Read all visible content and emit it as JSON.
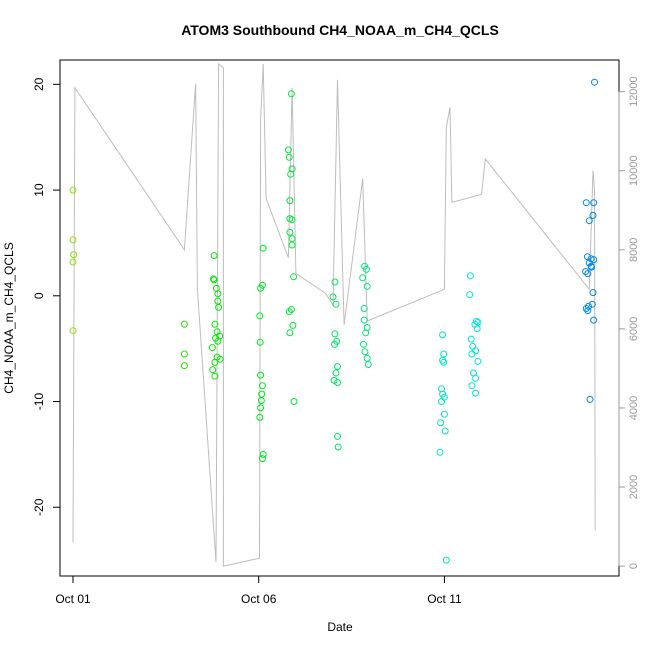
{
  "chart_data": {
    "type": "scatter",
    "title": "ATOM3 Southbound CH4_NOAA_m_CH4_QCLS",
    "xlabel": "Date",
    "ylabel": "CH4_NOAA_m_CH4_QCLS",
    "x_ticks": [
      "Oct 01",
      "Oct 06",
      "Oct 11"
    ],
    "x_tick_values": [
      1,
      6,
      11
    ],
    "xlim": [
      0.65,
      15.7
    ],
    "ylim": [
      -26.5,
      22.3
    ],
    "y_ticks": [
      -20,
      -10,
      0,
      10,
      20
    ],
    "y_right": {
      "description": "altitude trace (gray line)",
      "ylim": [
        -250,
        12800
      ],
      "ticks": [
        0,
        2000,
        4000,
        6000,
        8000,
        10000,
        12000
      ]
    },
    "grid": false,
    "series": [
      {
        "color_scale": "date (green to blue)",
        "points": [
          [
            1.0,
            10.0
          ],
          [
            1.0,
            5.3
          ],
          [
            1.02,
            3.9
          ],
          [
            1.0,
            3.2
          ],
          [
            1.0,
            -3.3
          ],
          [
            4.0,
            -2.7
          ],
          [
            4.0,
            -5.5
          ],
          [
            4.0,
            -6.6
          ],
          [
            4.8,
            3.8
          ],
          [
            4.78,
            1.6
          ],
          [
            4.8,
            1.5
          ],
          [
            4.86,
            0.7
          ],
          [
            4.9,
            0.2
          ],
          [
            4.9,
            -0.5
          ],
          [
            4.92,
            -1.1
          ],
          [
            4.82,
            -2.7
          ],
          [
            4.88,
            -3.4
          ],
          [
            4.95,
            -3.8
          ],
          [
            4.84,
            -4.0
          ],
          [
            4.9,
            -4.3
          ],
          [
            4.75,
            -4.9
          ],
          [
            4.88,
            -5.8
          ],
          [
            4.96,
            -6.0
          ],
          [
            4.82,
            -6.3
          ],
          [
            4.76,
            -7.0
          ],
          [
            4.82,
            -7.6
          ],
          [
            6.12,
            4.5
          ],
          [
            6.1,
            1.0
          ],
          [
            6.05,
            0.7
          ],
          [
            6.03,
            -1.9
          ],
          [
            6.04,
            -4.4
          ],
          [
            6.05,
            -7.5
          ],
          [
            6.1,
            -8.5
          ],
          [
            6.08,
            -9.3
          ],
          [
            6.07,
            -9.9
          ],
          [
            6.05,
            -10.6
          ],
          [
            6.03,
            -11.5
          ],
          [
            6.12,
            -15.0
          ],
          [
            6.1,
            -15.4
          ],
          [
            6.88,
            19.1
          ],
          [
            6.8,
            13.8
          ],
          [
            6.82,
            13.1
          ],
          [
            6.9,
            12.0
          ],
          [
            6.86,
            11.5
          ],
          [
            6.84,
            9.0
          ],
          [
            6.84,
            7.3
          ],
          [
            6.9,
            7.2
          ],
          [
            6.84,
            6.0
          ],
          [
            6.9,
            5.4
          ],
          [
            6.9,
            4.8
          ],
          [
            6.94,
            1.8
          ],
          [
            6.82,
            -1.5
          ],
          [
            6.88,
            -1.3
          ],
          [
            6.92,
            -2.8
          ],
          [
            6.84,
            -3.5
          ],
          [
            6.95,
            -10.0
          ],
          [
            8.05,
            1.3
          ],
          [
            8.0,
            -0.1
          ],
          [
            8.08,
            -0.8
          ],
          [
            8.05,
            -3.6
          ],
          [
            8.1,
            -4.3
          ],
          [
            8.04,
            -4.6
          ],
          [
            8.12,
            -6.7
          ],
          [
            8.08,
            -7.3
          ],
          [
            8.03,
            -8.0
          ],
          [
            8.12,
            -8.2
          ],
          [
            8.12,
            -13.3
          ],
          [
            8.14,
            -14.3
          ],
          [
            8.85,
            2.8
          ],
          [
            8.9,
            2.5
          ],
          [
            8.8,
            1.7
          ],
          [
            8.92,
            0.9
          ],
          [
            8.84,
            -1.2
          ],
          [
            8.84,
            -2.3
          ],
          [
            8.92,
            -3.0
          ],
          [
            8.88,
            -3.5
          ],
          [
            8.82,
            -4.6
          ],
          [
            8.86,
            -5.3
          ],
          [
            8.92,
            -5.9
          ],
          [
            8.95,
            -6.5
          ],
          [
            10.95,
            -3.7
          ],
          [
            10.98,
            -5.5
          ],
          [
            10.95,
            -6.1
          ],
          [
            10.98,
            -6.3
          ],
          [
            10.92,
            -8.8
          ],
          [
            10.95,
            -9.3
          ],
          [
            11.0,
            -9.6
          ],
          [
            10.92,
            -10.0
          ],
          [
            11.0,
            -11.2
          ],
          [
            10.9,
            -12.0
          ],
          [
            11.02,
            -12.8
          ],
          [
            10.88,
            -14.8
          ],
          [
            11.05,
            -25.0
          ],
          [
            11.7,
            1.9
          ],
          [
            11.68,
            0.1
          ],
          [
            11.86,
            -2.4
          ],
          [
            11.82,
            -2.7
          ],
          [
            11.9,
            -2.5
          ],
          [
            11.88,
            -3.1
          ],
          [
            11.72,
            -4.1
          ],
          [
            11.76,
            -4.8
          ],
          [
            11.84,
            -5.2
          ],
          [
            11.74,
            -5.5
          ],
          [
            11.9,
            -6.2
          ],
          [
            11.78,
            -7.3
          ],
          [
            11.84,
            -7.8
          ],
          [
            11.74,
            -8.5
          ],
          [
            11.84,
            -9.2
          ],
          [
            14.82,
            8.8
          ],
          [
            15.02,
            8.8
          ],
          [
            14.9,
            7.1
          ],
          [
            15.0,
            7.6
          ],
          [
            14.85,
            3.7
          ],
          [
            14.95,
            3.5
          ],
          [
            14.9,
            3.1
          ],
          [
            14.95,
            2.8
          ],
          [
            15.02,
            3.4
          ],
          [
            14.8,
            2.3
          ],
          [
            14.86,
            2.1
          ],
          [
            14.96,
            2.7
          ],
          [
            15.0,
            0.3
          ],
          [
            14.88,
            -1.0
          ],
          [
            14.82,
            -1.2
          ],
          [
            14.86,
            -1.4
          ],
          [
            14.98,
            -0.8
          ],
          [
            15.02,
            -2.3
          ],
          [
            14.92,
            -9.8
          ],
          [
            15.04,
            20.2
          ]
        ]
      }
    ],
    "right_axis_altitude_trace": [
      [
        1.0,
        600
      ],
      [
        1.05,
        12100
      ],
      [
        4.0,
        8000
      ],
      [
        4.3,
        12200
      ],
      [
        4.35,
        7000
      ],
      [
        4.85,
        100
      ],
      [
        4.92,
        12700
      ],
      [
        5.05,
        12600
      ],
      [
        5.05,
        0
      ],
      [
        6.02,
        200
      ],
      [
        6.05,
        11300
      ],
      [
        6.12,
        12700
      ],
      [
        6.2,
        9300
      ],
      [
        6.8,
        7800
      ],
      [
        6.9,
        12100
      ],
      [
        7.0,
        7400
      ],
      [
        7.8,
        6900
      ],
      [
        8.0,
        6600
      ],
      [
        8.12,
        12300
      ],
      [
        8.3,
        6100
      ],
      [
        8.8,
        9800
      ],
      [
        8.92,
        6200
      ],
      [
        11.0,
        7000
      ],
      [
        11.05,
        11100
      ],
      [
        11.15,
        11600
      ],
      [
        11.2,
        9200
      ],
      [
        12.0,
        9400
      ],
      [
        12.1,
        10300
      ],
      [
        14.9,
        7000
      ],
      [
        15.0,
        10000
      ],
      [
        15.04,
        9500
      ],
      [
        15.06,
        900
      ]
    ]
  }
}
